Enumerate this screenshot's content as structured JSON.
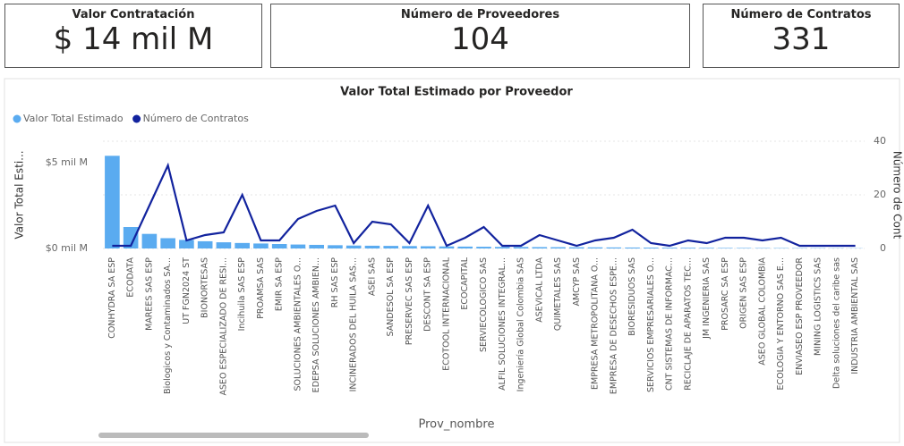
{
  "cards": [
    {
      "title": "Valor Contratación",
      "value": "$ 14 mil M"
    },
    {
      "title": "Número de Proveedores",
      "value": 104
    },
    {
      "title": "Número de Contratos",
      "value": 331
    }
  ],
  "chart_data": {
    "type": "combo",
    "title": "Valor Total Estimado por Proveedor",
    "x_label": "Prov_nombre",
    "y_label": "Valor Total Esti...",
    "y2_label": "Número de Cont",
    "categories": [
      "CONHYDRA SA ESP",
      "ECODATA",
      "MAREES SAS ESP",
      "Biologicos y Contaminados SA...",
      "UT FGN2024 ST",
      "BIONORTESAS",
      "ASEO ESPECIALIZADO DE RESI...",
      "Incihuila SAS ESP",
      "PROAMSA SAS",
      "EMIR SA ESP",
      "SOLUCIONES AMBIENTALES O...",
      "EDEPSA SOLUCIONES AMBIEN...",
      "RH SAS ESP",
      "INCINERADOS DEL HUILA SAS...",
      "ASEI SAS",
      "SANDESOL SA ESP",
      "PRESERVEC SAS ESP",
      "DESCONT SA ESP",
      "ECOTOOL INTERNACIONAL",
      "ECOCAPITAL",
      "SERVIECOLOGICO SAS",
      "ALFIL SOLUCIONES INTEGRAL...",
      "Ingeniería Global Colombia SAS",
      "ASEVICAL LTDA",
      "QUIMETALES SAS",
      "AMCYP SAS",
      "EMPRESA METROPOLITANA O...",
      "EMPRESA DE DESECHOS ESPE...",
      "BIORESIDUOS SAS",
      "SERVICIOS EMPRESARIALES O...",
      "CNT SISTEMAS DE INFORMAC...",
      "RECICLAJE DE APARATOS TEC...",
      "JM INGENIERIA SAS",
      "PROSARC SA ESP",
      "ORIGEN SAS ESP",
      "ASEO GLOBAL COLOMBIA",
      "ECOLOGIA Y ENTORNO SAS E...",
      "ENVIASEO ESP PROVEEDOR",
      "MINING LOGISTICS SAS",
      "Delta soluciones del caribe sas",
      "INDUSTRIA AMBIENTAL SAS"
    ],
    "series": [
      {
        "name": "Valor Total Estimado",
        "type": "bar",
        "color": "#5aabf0",
        "axis": "y",
        "values": [
          5.4,
          1.25,
          0.85,
          0.6,
          0.5,
          0.42,
          0.36,
          0.32,
          0.29,
          0.26,
          0.23,
          0.21,
          0.19,
          0.17,
          0.16,
          0.15,
          0.14,
          0.13,
          0.12,
          0.11,
          0.1,
          0.09,
          0.085,
          0.08,
          0.075,
          0.07,
          0.065,
          0.06,
          0.055,
          0.05,
          0.045,
          0.04,
          0.035,
          0.03,
          0.028,
          0.025,
          0.022,
          0.02,
          0.018,
          0.015,
          0.012
        ]
      },
      {
        "name": "Número de Contratos",
        "type": "line",
        "color": "#12239e",
        "axis": "y2",
        "values": [
          1,
          1,
          16,
          31,
          3,
          5,
          6,
          20,
          3,
          3,
          11,
          14,
          16,
          2,
          10,
          9,
          2,
          16,
          1,
          4,
          8,
          1,
          1,
          5,
          3,
          1,
          3,
          4,
          7,
          2,
          1,
          3,
          2,
          4,
          4,
          3,
          4,
          1,
          1,
          1,
          1
        ]
      }
    ],
    "ylim": [
      0,
      6.25
    ],
    "yticks": [
      {
        "value": 0,
        "label": "$0 mil M"
      },
      {
        "value": 5,
        "label": "$5 mil M"
      }
    ],
    "y2lim": [
      0,
      40
    ],
    "y2ticks": [
      0,
      20,
      40
    ],
    "grid": true
  }
}
